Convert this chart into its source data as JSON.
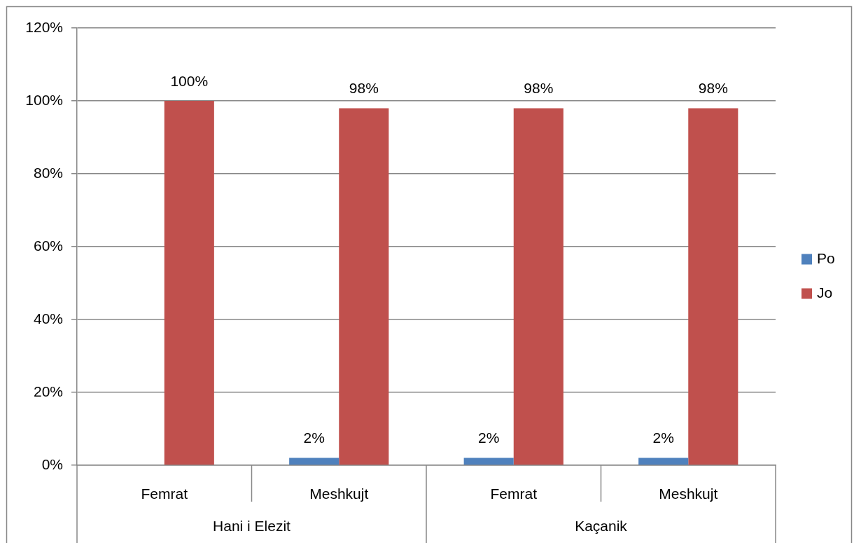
{
  "chart_data": {
    "type": "bar",
    "categories": [
      "Femrat",
      "Meshkujt",
      "Femrat",
      "Meshkujt"
    ],
    "annotations": [
      "Hani i Elezit",
      "Kaçanik"
    ],
    "series": [
      {
        "name": "Po",
        "color": "#4f81bd",
        "values": [
          0,
          2,
          2,
          2
        ],
        "value_labels": [
          null,
          "2%",
          "2%",
          "2%"
        ]
      },
      {
        "name": "Jo",
        "color": "#c0504d",
        "values": [
          100,
          98,
          98,
          98
        ],
        "value_labels": [
          "100%",
          "98%",
          "98%",
          "98%"
        ]
      }
    ],
    "ylim": [
      0,
      120
    ],
    "yticks": [
      {
        "value": 0,
        "label": "0%"
      },
      {
        "value": 20,
        "label": "20%"
      },
      {
        "value": 40,
        "label": "40%"
      },
      {
        "value": 60,
        "label": "60%"
      },
      {
        "value": 80,
        "label": "80%"
      },
      {
        "value": 100,
        "label": "100%"
      },
      {
        "value": 120,
        "label": "120%"
      }
    ],
    "grid": "y",
    "legend": "right"
  }
}
